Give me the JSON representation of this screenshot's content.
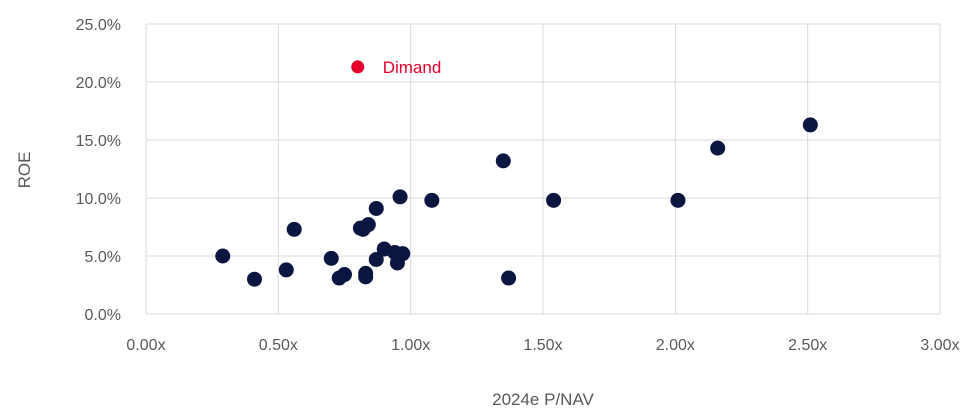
{
  "chart_data": {
    "type": "scatter",
    "xlabel": "2024e P/NAV",
    "ylabel": "ROE",
    "xlim": [
      0,
      3.0
    ],
    "ylim": [
      0,
      0.25
    ],
    "x_ticks": [
      0,
      0.5,
      1.0,
      1.5,
      2.0,
      2.5,
      3.0
    ],
    "x_tick_labels": [
      "0.00x",
      "0.50x",
      "1.00x",
      "1.50x",
      "2.00x",
      "2.50x",
      "3.00x"
    ],
    "y_ticks": [
      0,
      0.05,
      0.1,
      0.15,
      0.2,
      0.25
    ],
    "y_tick_labels": [
      "0.0%",
      "5.0%",
      "10.0%",
      "15.0%",
      "20.0%",
      "25.0%"
    ],
    "grid": true,
    "legend": "none",
    "colors": {
      "points": "#0b1640",
      "highlight": "#e4002b"
    },
    "series": [
      {
        "x": [
          0.29,
          0.41,
          0.53,
          0.56,
          0.7,
          0.73,
          0.75,
          0.81,
          0.82,
          0.83,
          0.83,
          0.84,
          0.87,
          0.87,
          0.9,
          0.94,
          0.95,
          0.96,
          0.97,
          1.08,
          1.35,
          1.37,
          1.54,
          2.01,
          2.16,
          2.51
        ],
        "y": [
          0.05,
          0.03,
          0.038,
          0.073,
          0.048,
          0.031,
          0.034,
          0.074,
          0.073,
          0.035,
          0.032,
          0.077,
          0.047,
          0.091,
          0.056,
          0.053,
          0.044,
          0.101,
          0.052,
          0.098,
          0.132,
          0.031,
          0.098,
          0.098,
          0.143,
          0.163
        ]
      },
      {
        "x": [
          0.8
        ],
        "y": [
          0.213
        ],
        "labels": [
          "Dimand"
        ]
      }
    ]
  }
}
